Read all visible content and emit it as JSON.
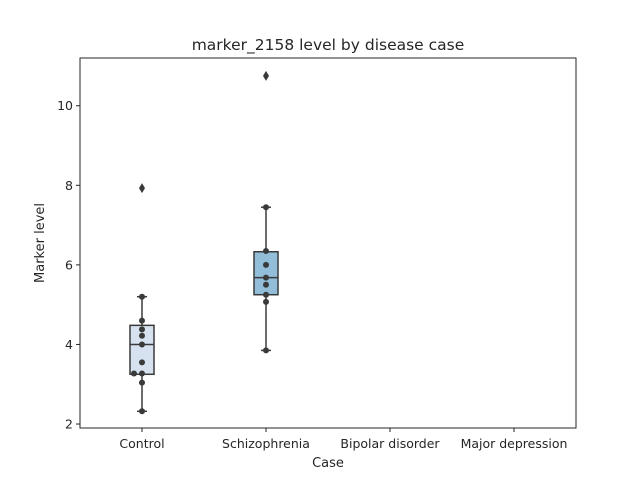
{
  "chart_data": {
    "type": "box",
    "title": "marker_2158 level by disease case",
    "xlabel": "Case",
    "ylabel": "Marker level",
    "ylim": [
      1.9,
      11.2
    ],
    "yticks": [
      2,
      4,
      6,
      8,
      10
    ],
    "grid": false,
    "categories": [
      "Control",
      "Schizophrenia",
      "Bipolar disorder",
      "Major depression"
    ],
    "colors": {
      "Control": "#d6e2f0",
      "Schizophrenia": "#92bed9",
      "line": "#3a3a3a",
      "point": "#3a3a3a"
    },
    "boxes": [
      {
        "category": "Control",
        "q1": 3.25,
        "median": 4.0,
        "q3": 4.48,
        "whisker_low": 2.32,
        "whisker_high": 5.2,
        "outliers": [
          7.93
        ],
        "points": [
          5.2,
          4.6,
          4.38,
          4.22,
          4.0,
          3.55,
          3.27,
          3.27,
          3.04,
          2.32
        ]
      },
      {
        "category": "Schizophrenia",
        "q1": 5.25,
        "median": 5.68,
        "q3": 6.33,
        "whisker_low": 3.85,
        "whisker_high": 7.45,
        "outliers": [
          10.75
        ],
        "points": [
          7.45,
          6.35,
          6.0,
          5.68,
          5.5,
          5.25,
          5.07,
          3.85
        ]
      }
    ]
  }
}
